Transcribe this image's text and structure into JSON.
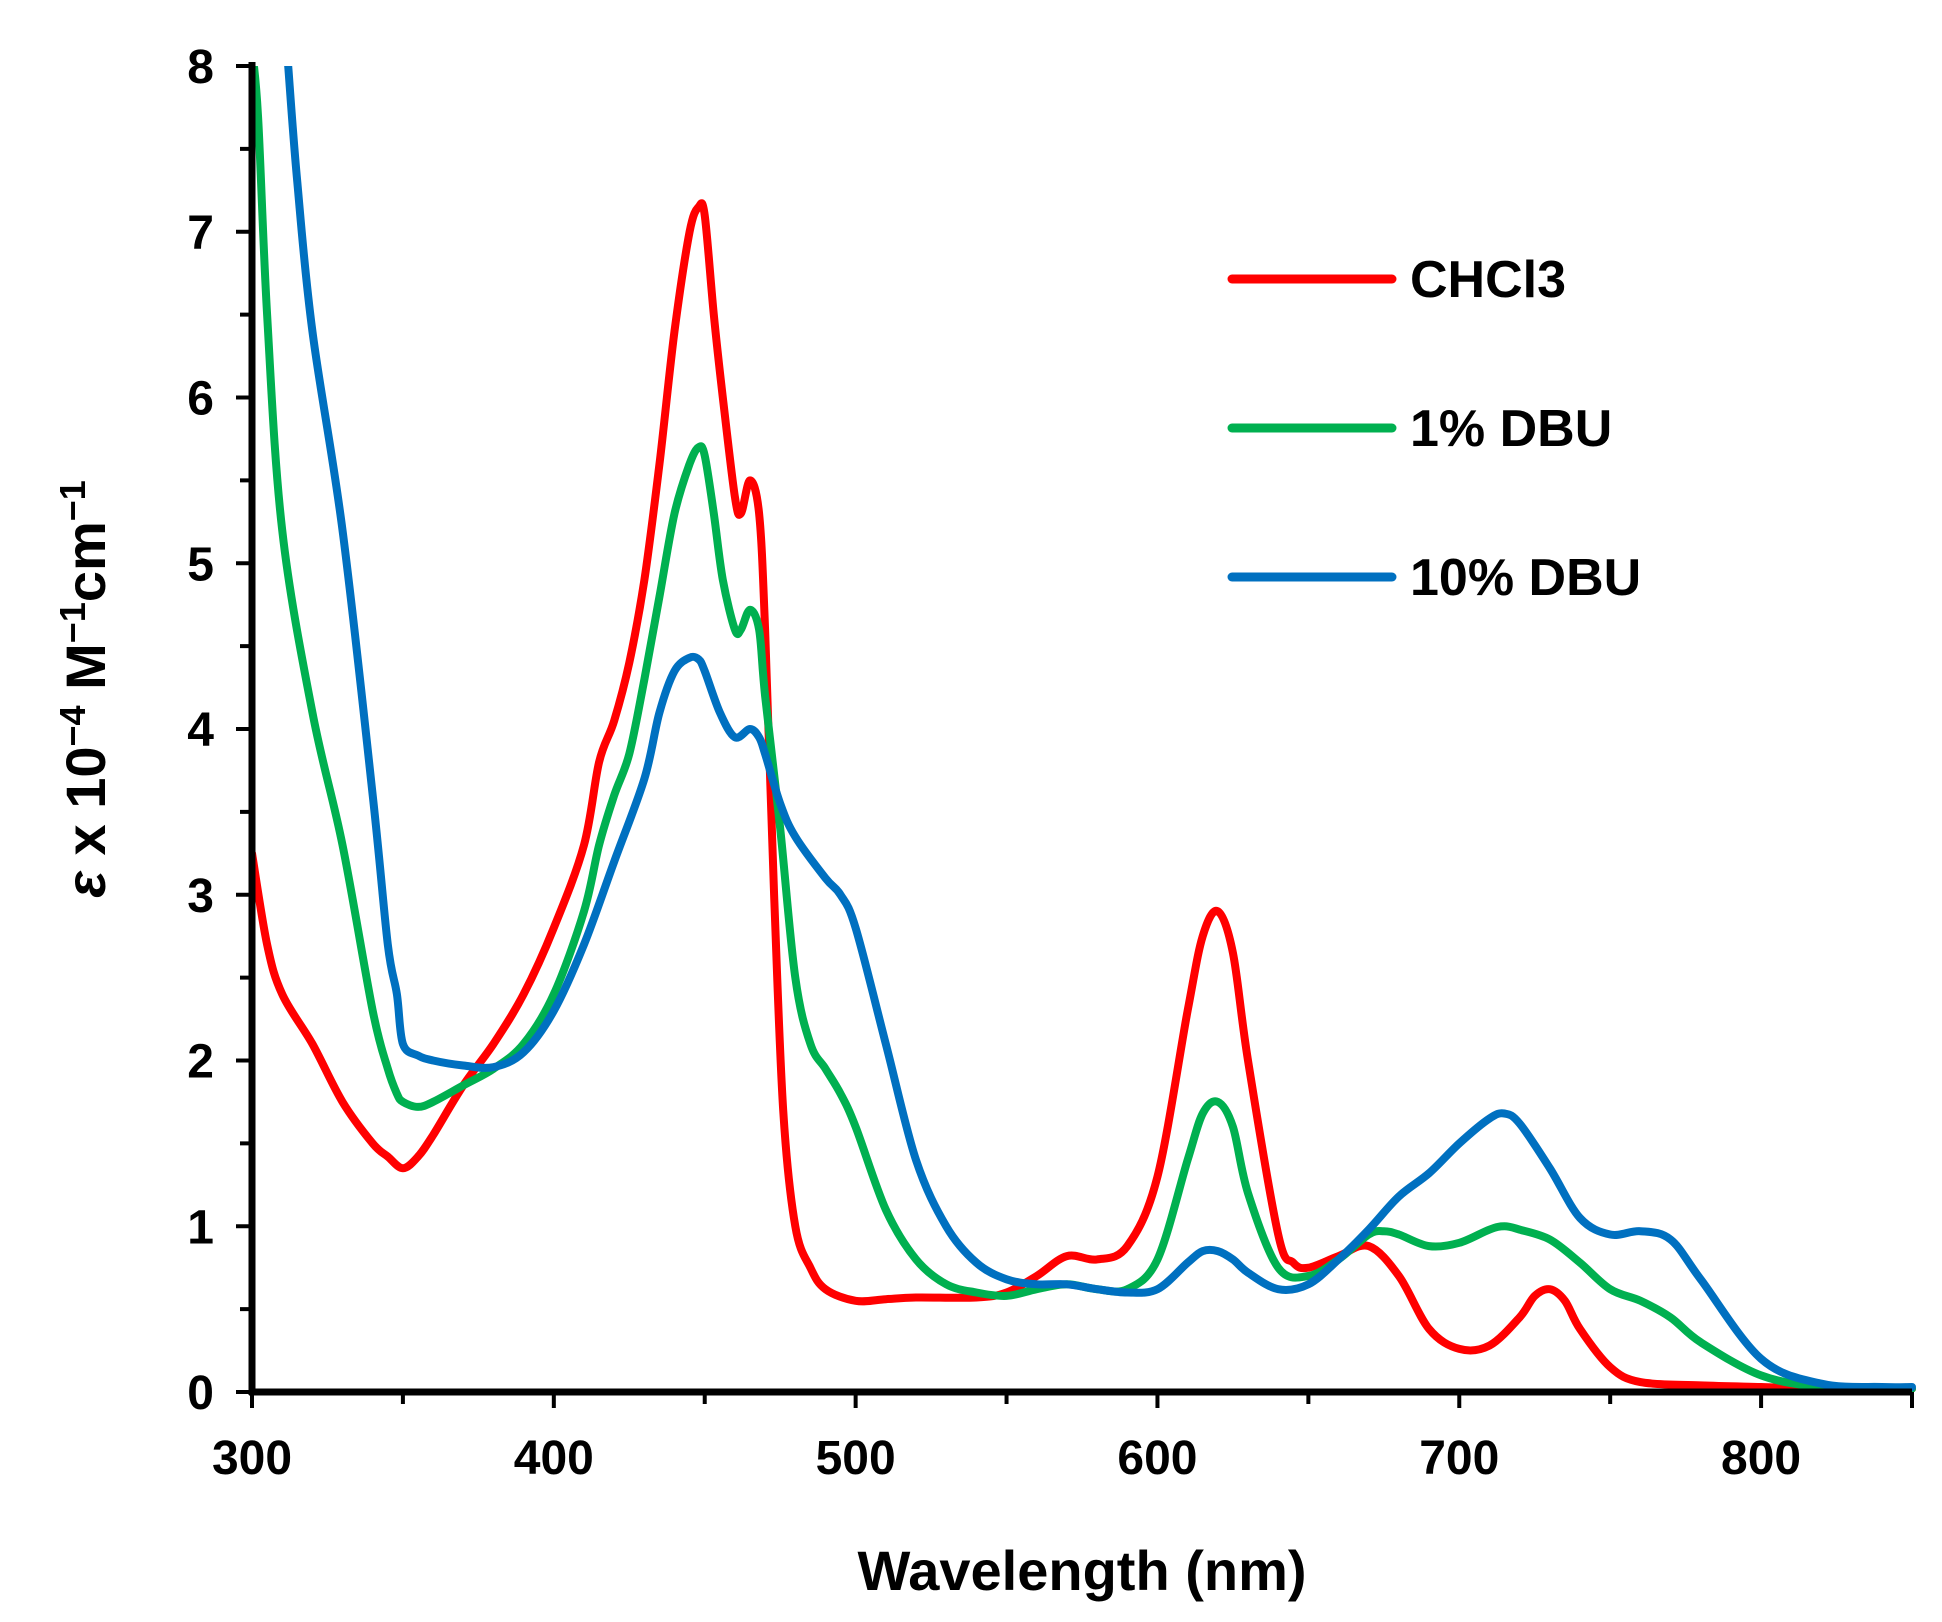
{
  "chart_data": {
    "type": "line",
    "title": "",
    "xlabel": "Wavelength (nm)",
    "ylabel": {
      "symbol": "ε",
      "text": " x 10",
      "exp1": "−4",
      "unit1": " M",
      "exp2": "−1",
      "unit2": "cm",
      "exp3": "−1"
    },
    "xlim": [
      300,
      850
    ],
    "ylim": [
      0,
      8
    ],
    "xticks": [
      300,
      400,
      500,
      600,
      700,
      800
    ],
    "yticks": [
      0,
      1,
      2,
      3,
      4,
      5,
      6,
      7,
      8
    ],
    "grid": false,
    "legend_position": "top-right",
    "series": [
      {
        "name": "CHCl3",
        "color": "#ff0000",
        "x": [
          300,
          305,
          310,
          320,
          330,
          340,
          345,
          350,
          355,
          360,
          370,
          380,
          390,
          400,
          410,
          415,
          420,
          425,
          430,
          435,
          440,
          445,
          448,
          450,
          453,
          456,
          460,
          462,
          465,
          468,
          470,
          473,
          476,
          480,
          485,
          490,
          500,
          510,
          520,
          540,
          550,
          560,
          570,
          580,
          590,
          600,
          610,
          615,
          620,
          625,
          630,
          640,
          645,
          650,
          660,
          670,
          680,
          690,
          700,
          710,
          720,
          725,
          730,
          735,
          740,
          750,
          760,
          780,
          800,
          820,
          840,
          850
        ],
        "y": [
          3.25,
          2.7,
          2.4,
          2.1,
          1.75,
          1.5,
          1.42,
          1.35,
          1.42,
          1.55,
          1.85,
          2.1,
          2.4,
          2.8,
          3.3,
          3.8,
          4.05,
          4.4,
          4.9,
          5.6,
          6.4,
          7.0,
          7.15,
          7.1,
          6.5,
          6.0,
          5.4,
          5.3,
          5.5,
          5.3,
          4.6,
          3.0,
          1.7,
          1.0,
          0.75,
          0.62,
          0.55,
          0.56,
          0.57,
          0.57,
          0.6,
          0.7,
          0.82,
          0.8,
          0.88,
          1.3,
          2.3,
          2.75,
          2.9,
          2.65,
          2.0,
          0.95,
          0.78,
          0.75,
          0.82,
          0.88,
          0.7,
          0.38,
          0.26,
          0.28,
          0.45,
          0.58,
          0.62,
          0.55,
          0.38,
          0.15,
          0.06,
          0.04,
          0.03,
          0.02,
          0.02,
          0.02
        ]
      },
      {
        "name": "1% DBU",
        "color": "#00b050",
        "x": [
          300,
          302,
          305,
          310,
          320,
          330,
          340,
          345,
          348,
          350,
          355,
          360,
          370,
          380,
          390,
          400,
          410,
          415,
          420,
          425,
          430,
          435,
          440,
          445,
          448,
          450,
          453,
          456,
          460,
          462,
          465,
          468,
          470,
          475,
          480,
          485,
          490,
          495,
          500,
          510,
          520,
          530,
          540,
          550,
          560,
          570,
          580,
          590,
          600,
          610,
          615,
          620,
          625,
          630,
          640,
          650,
          660,
          670,
          675,
          680,
          690,
          700,
          710,
          715,
          720,
          730,
          740,
          750,
          760,
          770,
          780,
          800,
          820,
          840,
          850
        ],
        "y": [
          8.1,
          7.7,
          6.5,
          5.2,
          4.1,
          3.3,
          2.3,
          1.95,
          1.8,
          1.75,
          1.72,
          1.75,
          1.85,
          1.95,
          2.1,
          2.4,
          2.9,
          3.3,
          3.6,
          3.85,
          4.3,
          4.8,
          5.3,
          5.6,
          5.7,
          5.65,
          5.3,
          4.9,
          4.6,
          4.6,
          4.72,
          4.6,
          4.2,
          3.4,
          2.5,
          2.1,
          1.95,
          1.8,
          1.6,
          1.1,
          0.8,
          0.65,
          0.6,
          0.58,
          0.62,
          0.65,
          0.62,
          0.62,
          0.8,
          1.4,
          1.68,
          1.75,
          1.6,
          1.2,
          0.75,
          0.7,
          0.8,
          0.95,
          0.97,
          0.95,
          0.88,
          0.9,
          0.98,
          1.0,
          0.98,
          0.92,
          0.78,
          0.62,
          0.55,
          0.45,
          0.3,
          0.1,
          0.03,
          0.02,
          0.02
        ]
      },
      {
        "name": "10% DBU",
        "color": "#0070c0",
        "x": [
          312,
          315,
          320,
          330,
          340,
          345,
          348,
          350,
          355,
          360,
          370,
          380,
          390,
          400,
          410,
          420,
          430,
          435,
          440,
          445,
          448,
          450,
          455,
          460,
          465,
          468,
          470,
          475,
          480,
          490,
          495,
          500,
          510,
          520,
          530,
          540,
          550,
          560,
          570,
          580,
          590,
          600,
          610,
          615,
          620,
          625,
          630,
          640,
          650,
          660,
          670,
          680,
          690,
          700,
          710,
          715,
          720,
          730,
          740,
          750,
          760,
          770,
          780,
          800,
          820,
          840,
          850
        ],
        "y": [
          8.0,
          7.3,
          6.4,
          5.2,
          3.6,
          2.7,
          2.4,
          2.1,
          2.03,
          2.0,
          1.97,
          1.96,
          2.05,
          2.3,
          2.7,
          3.2,
          3.7,
          4.1,
          4.35,
          4.43,
          4.42,
          4.35,
          4.1,
          3.95,
          4.0,
          3.95,
          3.85,
          3.55,
          3.35,
          3.1,
          3.0,
          2.8,
          2.1,
          1.4,
          1.0,
          0.78,
          0.68,
          0.65,
          0.65,
          0.62,
          0.6,
          0.62,
          0.78,
          0.85,
          0.85,
          0.8,
          0.72,
          0.62,
          0.65,
          0.8,
          0.98,
          1.18,
          1.32,
          1.5,
          1.65,
          1.68,
          1.62,
          1.35,
          1.05,
          0.95,
          0.97,
          0.92,
          0.68,
          0.2,
          0.05,
          0.03,
          0.03
        ]
      }
    ]
  }
}
